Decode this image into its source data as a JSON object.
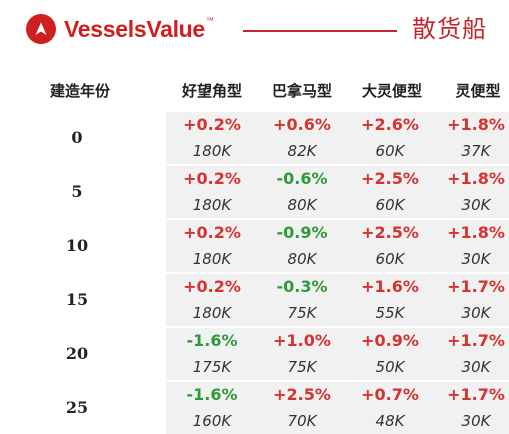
{
  "brand": {
    "name": "VesselsValue",
    "tm": "™",
    "accent_color": "#c0262b",
    "logo_icon": "triangle-arrow-logo-icon"
  },
  "header": {
    "title": "散货船"
  },
  "table": {
    "row_header": "建造年份",
    "columns": [
      "好望角型",
      "巴拿马型",
      "大灵便型",
      "灵便型"
    ],
    "colors": {
      "up": "#d6322f",
      "down": "#2f9a3a",
      "shade": "#f1f1f1"
    },
    "rows": [
      {
        "age": "0",
        "cells": [
          {
            "change": "+0.2%",
            "dir": "up",
            "value": "180K"
          },
          {
            "change": "+0.6%",
            "dir": "up",
            "value": "82K"
          },
          {
            "change": "+2.6%",
            "dir": "up",
            "value": "60K"
          },
          {
            "change": "+1.8%",
            "dir": "up",
            "value": "37K"
          }
        ]
      },
      {
        "age": "5",
        "cells": [
          {
            "change": "+0.2%",
            "dir": "up",
            "value": "180K"
          },
          {
            "change": "-0.6%",
            "dir": "down",
            "value": "80K"
          },
          {
            "change": "+2.5%",
            "dir": "up",
            "value": "60K"
          },
          {
            "change": "+1.8%",
            "dir": "up",
            "value": "30K"
          }
        ]
      },
      {
        "age": "10",
        "cells": [
          {
            "change": "+0.2%",
            "dir": "up",
            "value": "180K"
          },
          {
            "change": "-0.9%",
            "dir": "down",
            "value": "80K"
          },
          {
            "change": "+2.5%",
            "dir": "up",
            "value": "60K"
          },
          {
            "change": "+1.8%",
            "dir": "up",
            "value": "30K"
          }
        ]
      },
      {
        "age": "15",
        "cells": [
          {
            "change": "+0.2%",
            "dir": "up",
            "value": "180K"
          },
          {
            "change": "-0.3%",
            "dir": "down",
            "value": "75K"
          },
          {
            "change": "+1.6%",
            "dir": "up",
            "value": "55K"
          },
          {
            "change": "+1.7%",
            "dir": "up",
            "value": "30K"
          }
        ]
      },
      {
        "age": "20",
        "cells": [
          {
            "change": "-1.6%",
            "dir": "down",
            "value": "175K"
          },
          {
            "change": "+1.0%",
            "dir": "up",
            "value": "75K"
          },
          {
            "change": "+0.9%",
            "dir": "up",
            "value": "50K"
          },
          {
            "change": "+1.7%",
            "dir": "up",
            "value": "30K"
          }
        ]
      },
      {
        "age": "25",
        "cells": [
          {
            "change": "-1.6%",
            "dir": "down",
            "value": "160K"
          },
          {
            "change": "+2.5%",
            "dir": "up",
            "value": "70K"
          },
          {
            "change": "+0.7%",
            "dir": "up",
            "value": "48K"
          },
          {
            "change": "+1.7%",
            "dir": "up",
            "value": "30K"
          }
        ]
      }
    ]
  }
}
